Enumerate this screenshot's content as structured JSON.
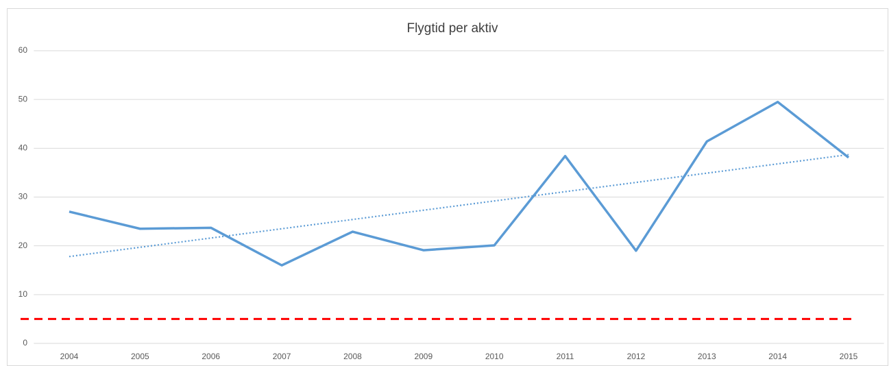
{
  "chart_data": {
    "type": "line",
    "title": "Flygtid per aktiv",
    "categories": [
      "2004",
      "2005",
      "2006",
      "2007",
      "2008",
      "2009",
      "2010",
      "2011",
      "2012",
      "2013",
      "2014",
      "2015"
    ],
    "series": [
      {
        "color": "#5b9bd5",
        "values": [
          27.0,
          23.5,
          23.7,
          16.0,
          22.9,
          19.1,
          20.1,
          38.4,
          19.0,
          41.4,
          49.5,
          38.1
        ]
      }
    ],
    "trendline": {
      "color": "#5b9bd5",
      "style": "dotted",
      "values": [
        17.8,
        38.7
      ]
    },
    "reference_line": {
      "value": 5,
      "color": "#ff0000",
      "style": "dashed"
    },
    "ylim": [
      0,
      60
    ],
    "yticks": [
      0,
      10,
      20,
      30,
      40,
      50,
      60
    ],
    "grid": true
  }
}
